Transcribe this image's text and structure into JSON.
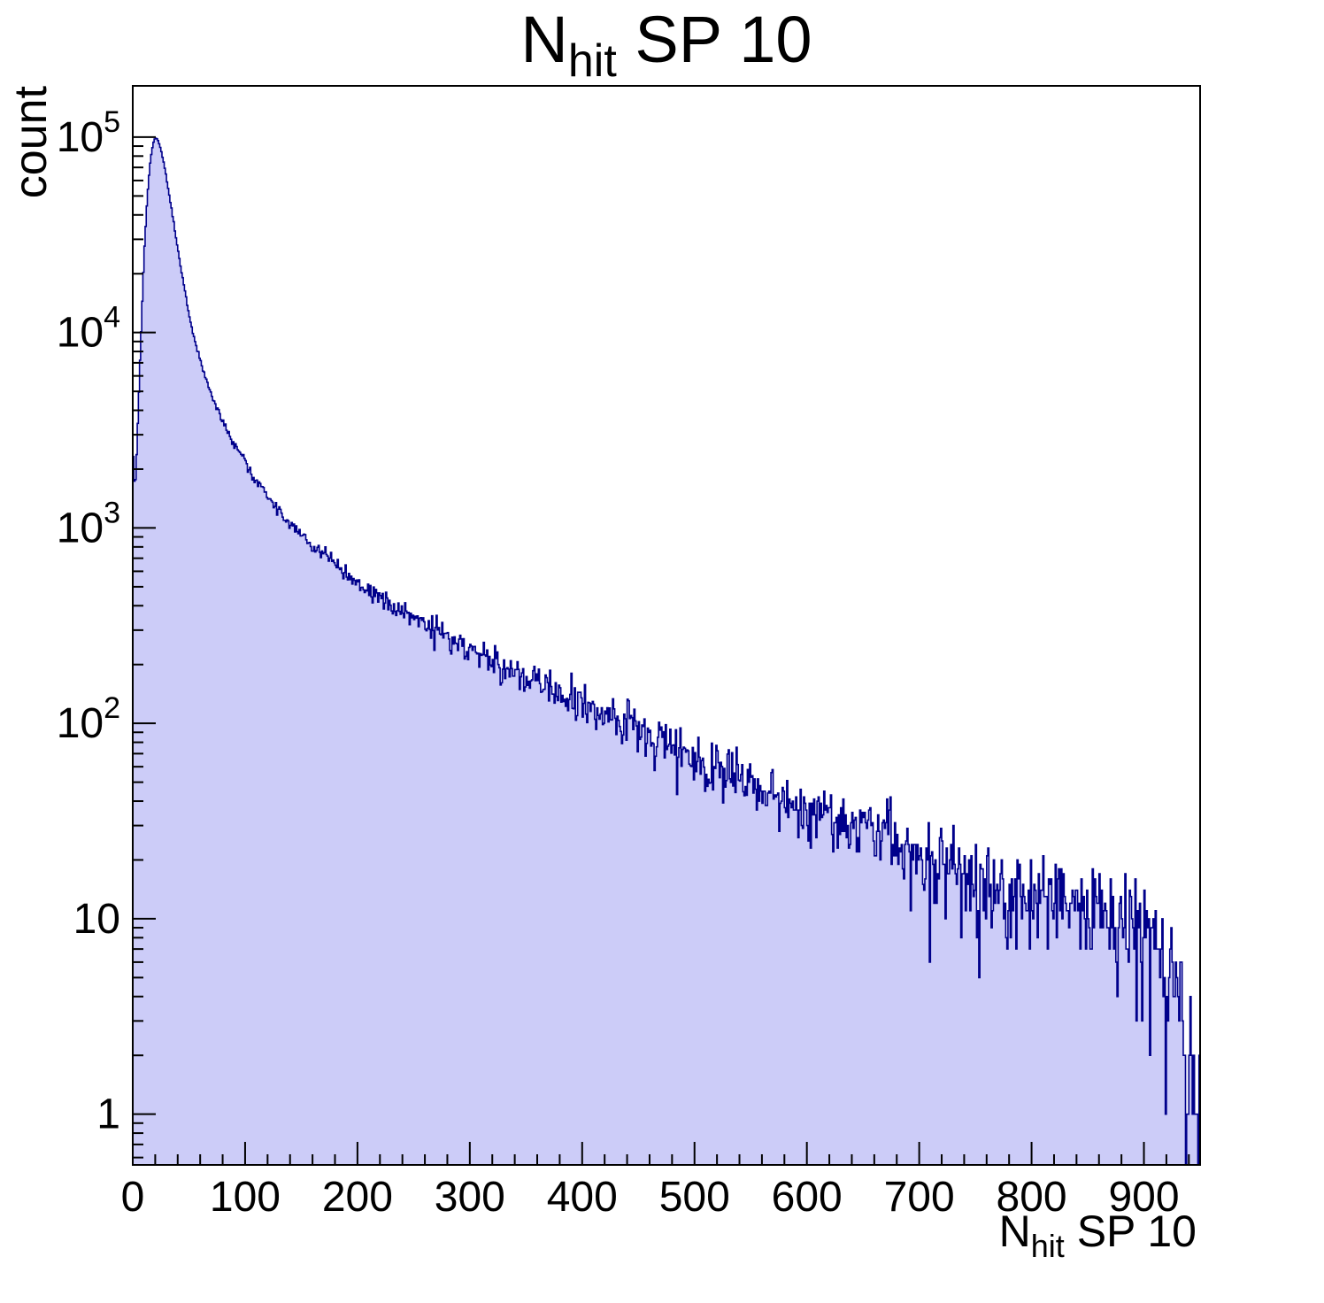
{
  "page": {
    "background": "#ffffff"
  },
  "chart_data": {
    "type": "area",
    "subtype": "step-histogram-log-y",
    "title": {
      "prefix": "N",
      "subscript": "hit",
      "suffix": " SP 10"
    },
    "xlabel": {
      "prefix": "N",
      "subscript": "hit",
      "suffix": " SP 10"
    },
    "ylabel": "count",
    "x_range": [
      0,
      950
    ],
    "bins": 950,
    "bin_width": 1,
    "y_scale": "log",
    "y_range": [
      0.55,
      183000
    ],
    "x_major_ticks": [
      0,
      100,
      200,
      300,
      400,
      500,
      600,
      700,
      800,
      900
    ],
    "x_minor_step": 20,
    "y_major_ticks": [
      1,
      10,
      100,
      1000,
      10000,
      100000
    ],
    "log_minor_ticks": true,
    "legend": null,
    "grid": false,
    "peak": {
      "x": 20,
      "count": 100000
    },
    "noise_model": "poisson",
    "control_points": [
      [
        0,
        2800
      ],
      [
        2,
        1500
      ],
      [
        4,
        2800
      ],
      [
        6,
        6000
      ],
      [
        8,
        12000
      ],
      [
        10,
        24000
      ],
      [
        12,
        40000
      ],
      [
        14,
        60000
      ],
      [
        16,
        78000
      ],
      [
        18,
        92000
      ],
      [
        20,
        100000
      ],
      [
        23,
        95000
      ],
      [
        26,
        82000
      ],
      [
        30,
        62000
      ],
      [
        34,
        45000
      ],
      [
        38,
        32000
      ],
      [
        42,
        23000
      ],
      [
        46,
        17000
      ],
      [
        50,
        12500
      ],
      [
        55,
        9200
      ],
      [
        60,
        7200
      ],
      [
        65,
        5800
      ],
      [
        70,
        4800
      ],
      [
        75,
        4100
      ],
      [
        80,
        3500
      ],
      [
        85,
        3050
      ],
      [
        90,
        2700
      ],
      [
        95,
        2400
      ],
      [
        100,
        2150
      ],
      [
        110,
        1750
      ],
      [
        120,
        1450
      ],
      [
        130,
        1230
      ],
      [
        140,
        1060
      ],
      [
        150,
        930
      ],
      [
        160,
        820
      ],
      [
        170,
        730
      ],
      [
        180,
        655
      ],
      [
        190,
        590
      ],
      [
        200,
        535
      ],
      [
        215,
        460
      ],
      [
        230,
        405
      ],
      [
        245,
        360
      ],
      [
        260,
        320
      ],
      [
        275,
        285
      ],
      [
        290,
        255
      ],
      [
        305,
        230
      ],
      [
        320,
        207
      ],
      [
        335,
        188
      ],
      [
        350,
        170
      ],
      [
        365,
        154
      ],
      [
        380,
        140
      ],
      [
        395,
        127
      ],
      [
        410,
        116
      ],
      [
        425,
        106
      ],
      [
        440,
        97
      ],
      [
        455,
        89
      ],
      [
        470,
        81
      ],
      [
        485,
        74
      ],
      [
        500,
        67
      ],
      [
        515,
        61
      ],
      [
        530,
        56
      ],
      [
        545,
        51
      ],
      [
        560,
        46
      ],
      [
        575,
        42
      ],
      [
        590,
        38
      ],
      [
        605,
        35
      ],
      [
        620,
        33
      ],
      [
        635,
        31
      ],
      [
        650,
        30
      ],
      [
        665,
        28
      ],
      [
        680,
        25
      ],
      [
        695,
        22
      ],
      [
        710,
        20
      ],
      [
        725,
        18.5
      ],
      [
        740,
        17
      ],
      [
        755,
        16
      ],
      [
        770,
        15
      ],
      [
        785,
        14.5
      ],
      [
        800,
        14
      ],
      [
        815,
        13
      ],
      [
        830,
        12
      ],
      [
        845,
        11.5
      ],
      [
        860,
        11
      ],
      [
        875,
        10.5
      ],
      [
        890,
        10
      ],
      [
        900,
        9
      ],
      [
        910,
        7.5
      ],
      [
        920,
        6
      ],
      [
        930,
        4.5
      ],
      [
        940,
        2.5
      ],
      [
        950,
        1.2
      ]
    ],
    "style": {
      "fill_color": "#ccccf8",
      "line_color": "#00008b",
      "axis_color": "#000000",
      "text_color": "#000000",
      "background": "#ffffff"
    }
  }
}
